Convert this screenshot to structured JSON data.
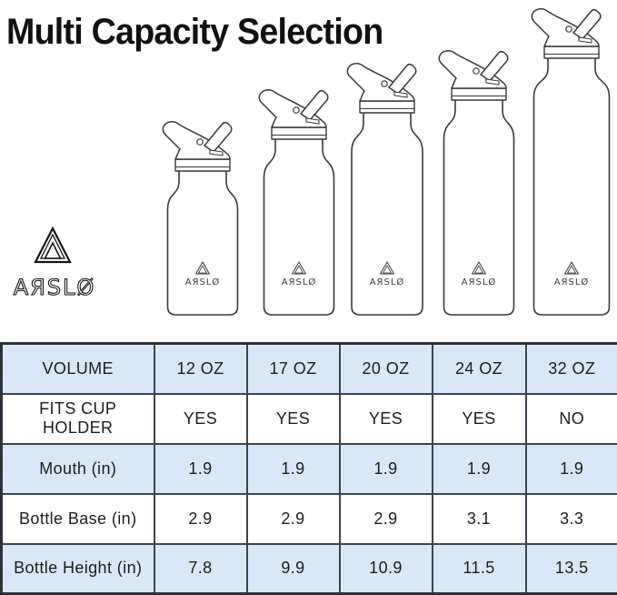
{
  "title": "Multi Capacity Selection",
  "brand": {
    "name": "ARSLO",
    "logo_text": "AЯSLØ"
  },
  "bottles": {
    "logo_text": "AЯSLØ",
    "capacities": [
      "12 OZ",
      "17 OZ",
      "20 OZ",
      "24 OZ",
      "32 OZ"
    ]
  },
  "table": {
    "header": {
      "cells": [
        "VOLUME",
        "12 OZ",
        "17 OZ",
        "20 OZ",
        "24 OZ",
        "32 OZ"
      ]
    },
    "rows": [
      {
        "cells": [
          "FITS CUP HOLDER",
          "YES",
          "YES",
          "YES",
          "YES",
          "NO"
        ]
      },
      {
        "cells": [
          "Mouth (in)",
          "1.9",
          "1.9",
          "1.9",
          "1.9",
          "1.9"
        ]
      },
      {
        "cells": [
          "Bottle Base (in)",
          "2.9",
          "2.9",
          "2.9",
          "3.1",
          "3.3"
        ]
      },
      {
        "cells": [
          "Bottle Height (in)",
          "7.8",
          "9.9",
          "10.9",
          "11.5",
          "13.5"
        ]
      }
    ]
  },
  "colors": {
    "row_highlight": "#d9e7f8",
    "table_border": "#3d454f",
    "drawing_line": "#3a3a3a",
    "text": "#1d1d1d"
  }
}
